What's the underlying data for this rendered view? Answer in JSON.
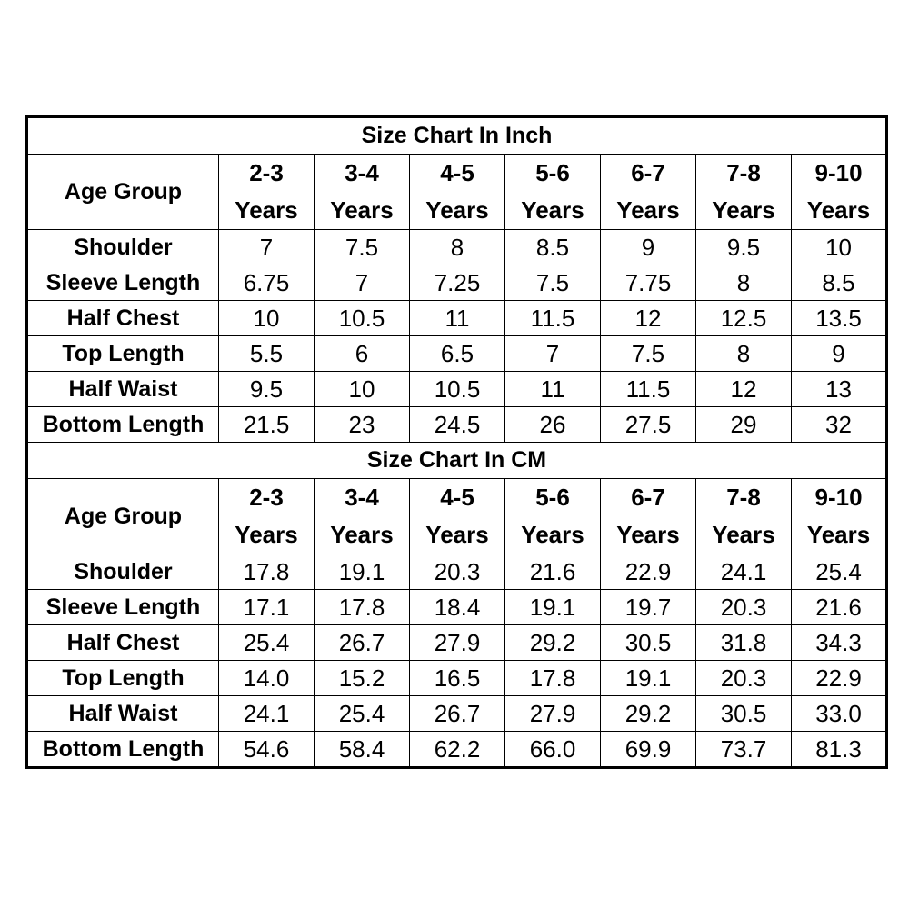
{
  "sections": [
    {
      "title": "Size Chart In Inch",
      "header_label": "Age Group",
      "columns": [
        {
          "top": "2-3",
          "bottom": "Years"
        },
        {
          "top": "3-4",
          "bottom": "Years"
        },
        {
          "top": "4-5",
          "bottom": "Years"
        },
        {
          "top": "5-6",
          "bottom": "Years"
        },
        {
          "top": "6-7",
          "bottom": "Years"
        },
        {
          "top": "7-8",
          "bottom": "Years"
        },
        {
          "top": "9-10",
          "bottom": "Years"
        }
      ],
      "rows": [
        {
          "label": "Shoulder",
          "values": [
            "7",
            "7.5",
            "8",
            "8.5",
            "9",
            "9.5",
            "10"
          ]
        },
        {
          "label": "Sleeve Length",
          "values": [
            "6.75",
            "7",
            "7.25",
            "7.5",
            "7.75",
            "8",
            "8.5"
          ]
        },
        {
          "label": "Half Chest",
          "values": [
            "10",
            "10.5",
            "11",
            "11.5",
            "12",
            "12.5",
            "13.5"
          ]
        },
        {
          "label": "Top Length",
          "values": [
            "5.5",
            "6",
            "6.5",
            "7",
            "7.5",
            "8",
            "9"
          ]
        },
        {
          "label": "Half Waist",
          "values": [
            "9.5",
            "10",
            "10.5",
            "11",
            "11.5",
            "12",
            "13"
          ]
        },
        {
          "label": "Bottom Length",
          "values": [
            "21.5",
            "23",
            "24.5",
            "26",
            "27.5",
            "29",
            "32"
          ]
        }
      ]
    },
    {
      "title": "Size Chart In CM",
      "header_label": "Age Group",
      "columns": [
        {
          "top": "2-3",
          "bottom": "Years"
        },
        {
          "top": "3-4",
          "bottom": "Years"
        },
        {
          "top": "4-5",
          "bottom": "Years"
        },
        {
          "top": "5-6",
          "bottom": "Years"
        },
        {
          "top": "6-7",
          "bottom": "Years"
        },
        {
          "top": "7-8",
          "bottom": "Years"
        },
        {
          "top": "9-10",
          "bottom": "Years"
        }
      ],
      "rows": [
        {
          "label": "Shoulder",
          "values": [
            "17.8",
            "19.1",
            "20.3",
            "21.6",
            "22.9",
            "24.1",
            "25.4"
          ]
        },
        {
          "label": "Sleeve Length",
          "values": [
            "17.1",
            "17.8",
            "18.4",
            "19.1",
            "19.7",
            "20.3",
            "21.6"
          ]
        },
        {
          "label": "Half Chest",
          "values": [
            "25.4",
            "26.7",
            "27.9",
            "29.2",
            "30.5",
            "31.8",
            "34.3"
          ]
        },
        {
          "label": "Top Length",
          "values": [
            "14.0",
            "15.2",
            "16.5",
            "17.8",
            "19.1",
            "20.3",
            "22.9"
          ]
        },
        {
          "label": "Half Waist",
          "values": [
            "24.1",
            "25.4",
            "26.7",
            "27.9",
            "29.2",
            "30.5",
            "33.0"
          ]
        },
        {
          "label": "Bottom Length",
          "values": [
            "54.6",
            "58.4",
            "62.2",
            "66.0",
            "69.9",
            "73.7",
            "81.3"
          ]
        }
      ]
    }
  ]
}
